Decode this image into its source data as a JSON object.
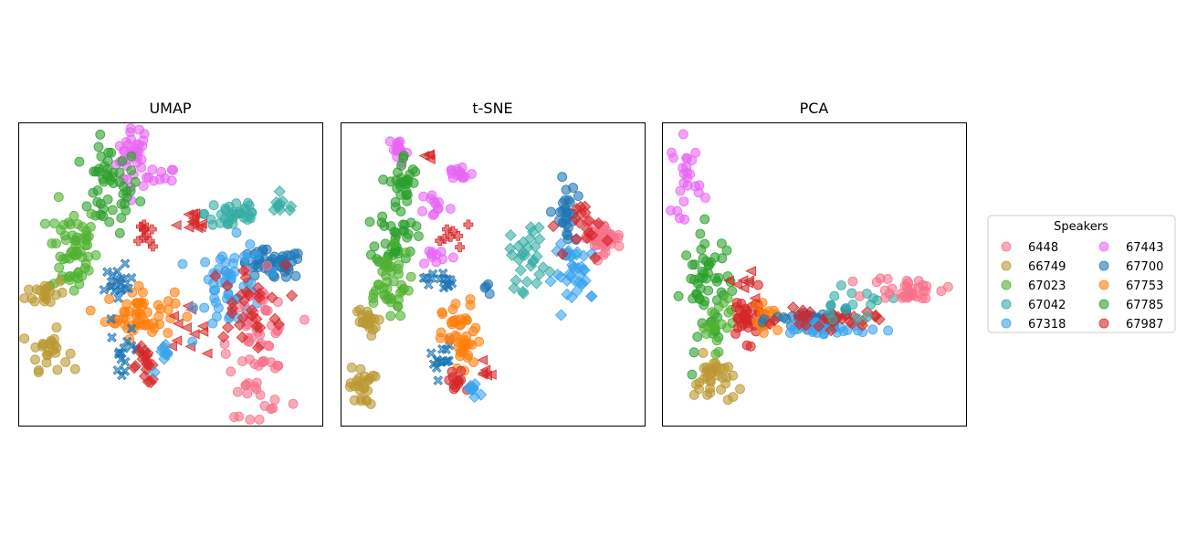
{
  "chart_data": [
    {
      "type": "scatter",
      "title": "UMAP",
      "xlabel": "",
      "ylabel": "",
      "xlim": [
        0,
        100
      ],
      "ylim": [
        0,
        100
      ],
      "axes_ticks": false,
      "clusters": [
        {
          "speaker": "67443",
          "marker": "o",
          "cx": 38,
          "cy": 89,
          "sx": 3.5,
          "sy": 7,
          "n": 35
        },
        {
          "speaker": "67443",
          "marker": "o",
          "cx": 47,
          "cy": 82,
          "sx": 3,
          "sy": 2,
          "n": 10
        },
        {
          "speaker": "67785",
          "marker": "o",
          "cx": 30,
          "cy": 78,
          "sx": 6,
          "sy": 9,
          "n": 50
        },
        {
          "speaker": "67023",
          "marker": "o",
          "cx": 18,
          "cy": 58,
          "sx": 5,
          "sy": 10,
          "n": 60
        },
        {
          "speaker": "66749",
          "marker": "o",
          "cx": 9,
          "cy": 44,
          "sx": 4,
          "sy": 3,
          "n": 20
        },
        {
          "speaker": "66749",
          "marker": "o",
          "cx": 10,
          "cy": 25,
          "sx": 4,
          "sy": 4,
          "n": 25
        },
        {
          "speaker": "67753",
          "marker": "o",
          "cx": 40,
          "cy": 37,
          "sx": 7,
          "sy": 5,
          "n": 55
        },
        {
          "speaker": "67700",
          "marker": "X",
          "cx": 33,
          "cy": 46,
          "sx": 3,
          "sy": 4,
          "n": 20
        },
        {
          "speaker": "67700",
          "marker": "X",
          "cx": 35,
          "cy": 25,
          "sx": 3,
          "sy": 4,
          "n": 15
        },
        {
          "speaker": "67987",
          "marker": "D",
          "cx": 42,
          "cy": 20,
          "sx": 3,
          "sy": 4,
          "n": 18
        },
        {
          "speaker": "67987",
          "marker": "<",
          "cx": 55,
          "cy": 32,
          "sx": 4,
          "sy": 4,
          "n": 12
        },
        {
          "speaker": "67318",
          "marker": "D",
          "cx": 48,
          "cy": 22,
          "sx": 2,
          "sy": 3,
          "n": 10
        },
        {
          "speaker": "67042",
          "marker": "o",
          "cx": 71,
          "cy": 70,
          "sx": 6,
          "sy": 4,
          "n": 35
        },
        {
          "speaker": "67042",
          "marker": "D",
          "cx": 87,
          "cy": 72,
          "sx": 3,
          "sy": 2,
          "n": 10
        },
        {
          "speaker": "67700",
          "marker": "o",
          "cx": 83,
          "cy": 53,
          "sx": 7,
          "sy": 3,
          "n": 50
        },
        {
          "speaker": "67318",
          "marker": "o",
          "cx": 70,
          "cy": 46,
          "sx": 7,
          "sy": 9,
          "n": 55
        },
        {
          "speaker": "6448",
          "marker": "o",
          "cx": 79,
          "cy": 26,
          "sx": 6,
          "sy": 14,
          "n": 70
        },
        {
          "speaker": "67987",
          "marker": "D",
          "cx": 75,
          "cy": 40,
          "sx": 8,
          "sy": 8,
          "n": 30
        },
        {
          "speaker": "67987",
          "marker": "<",
          "cx": 57,
          "cy": 66,
          "sx": 3,
          "sy": 3,
          "n": 12
        },
        {
          "speaker": "67987",
          "marker": "P",
          "cx": 42,
          "cy": 62,
          "sx": 1.5,
          "sy": 4,
          "n": 10
        }
      ]
    },
    {
      "type": "scatter",
      "title": "t-SNE",
      "xlabel": "",
      "ylabel": "",
      "xlim": [
        0,
        100
      ],
      "ylim": [
        0,
        100
      ],
      "axes_ticks": false,
      "clusters": [
        {
          "speaker": "67443",
          "marker": "o",
          "cx": 19,
          "cy": 91,
          "sx": 2,
          "sy": 3,
          "n": 15
        },
        {
          "speaker": "67443",
          "marker": "o",
          "cx": 39,
          "cy": 83,
          "sx": 3,
          "sy": 2,
          "n": 15
        },
        {
          "speaker": "67443",
          "marker": "o",
          "cx": 31,
          "cy": 73,
          "sx": 3,
          "sy": 3,
          "n": 12
        },
        {
          "speaker": "67443",
          "marker": "o",
          "cx": 32,
          "cy": 56,
          "sx": 4,
          "sy": 2,
          "n": 10
        },
        {
          "speaker": "67785",
          "marker": "o",
          "cx": 21,
          "cy": 80,
          "sx": 3,
          "sy": 6,
          "n": 30
        },
        {
          "speaker": "67785",
          "marker": "o",
          "cx": 18,
          "cy": 62,
          "sx": 4,
          "sy": 6,
          "n": 35
        },
        {
          "speaker": "67023",
          "marker": "o",
          "cx": 15,
          "cy": 47,
          "sx": 5,
          "sy": 7,
          "n": 45
        },
        {
          "speaker": "66749",
          "marker": "o",
          "cx": 8,
          "cy": 34,
          "sx": 2.5,
          "sy": 3,
          "n": 20
        },
        {
          "speaker": "66749",
          "marker": "o",
          "cx": 7,
          "cy": 13,
          "sx": 2.5,
          "sy": 4,
          "n": 25
        },
        {
          "speaker": "67700",
          "marker": "X",
          "cx": 32,
          "cy": 48,
          "sx": 3,
          "sy": 2,
          "n": 15
        },
        {
          "speaker": "67700",
          "marker": "X",
          "cx": 33,
          "cy": 22,
          "sx": 2.5,
          "sy": 4,
          "n": 15
        },
        {
          "speaker": "67753",
          "marker": "o",
          "cx": 40,
          "cy": 28,
          "sx": 4,
          "sy": 8,
          "n": 45
        },
        {
          "speaker": "67987",
          "marker": "o",
          "cx": 38,
          "cy": 14,
          "sx": 2,
          "sy": 3,
          "n": 12
        },
        {
          "speaker": "67318",
          "marker": "D",
          "cx": 44,
          "cy": 12,
          "sx": 2.5,
          "sy": 2,
          "n": 10
        },
        {
          "speaker": "67987",
          "marker": "<",
          "cx": 48,
          "cy": 19,
          "sx": 1.5,
          "sy": 3,
          "n": 6
        },
        {
          "speaker": "67987",
          "marker": "<",
          "cx": 28,
          "cy": 89,
          "sx": 1.5,
          "sy": 1,
          "n": 4
        },
        {
          "speaker": "67987",
          "marker": "P",
          "cx": 38,
          "cy": 63,
          "sx": 3,
          "sy": 2,
          "n": 8
        },
        {
          "speaker": "67700",
          "marker": "o",
          "cx": 47,
          "cy": 45,
          "sx": 1.5,
          "sy": 1.5,
          "n": 4
        },
        {
          "speaker": "67042",
          "marker": "D",
          "cx": 62,
          "cy": 56,
          "sx": 4,
          "sy": 7,
          "n": 30
        },
        {
          "speaker": "67700",
          "marker": "o",
          "cx": 74,
          "cy": 68,
          "sx": 2,
          "sy": 8,
          "n": 30
        },
        {
          "speaker": "6448",
          "marker": "o",
          "cx": 86,
          "cy": 62,
          "sx": 4,
          "sy": 3,
          "n": 40
        },
        {
          "speaker": "67318",
          "marker": "D",
          "cx": 78,
          "cy": 50,
          "sx": 5,
          "sy": 6,
          "n": 35
        },
        {
          "speaker": "67987",
          "marker": "D",
          "cx": 82,
          "cy": 65,
          "sx": 4,
          "sy": 6,
          "n": 18
        }
      ]
    },
    {
      "type": "scatter",
      "title": "PCA",
      "xlabel": "",
      "ylabel": "",
      "xlim": [
        0,
        100
      ],
      "ylim": [
        0,
        100
      ],
      "axes_ticks": false,
      "clusters": [
        {
          "speaker": "67443",
          "marker": "o",
          "cx": 8,
          "cy": 82,
          "sx": 3,
          "sy": 8,
          "n": 25
        },
        {
          "speaker": "67785",
          "marker": "o",
          "cx": 15,
          "cy": 45,
          "sx": 5,
          "sy": 12,
          "n": 55
        },
        {
          "speaker": "67023",
          "marker": "o",
          "cx": 18,
          "cy": 35,
          "sx": 4,
          "sy": 6,
          "n": 20
        },
        {
          "speaker": "66749",
          "marker": "o",
          "cx": 17,
          "cy": 15,
          "sx": 4,
          "sy": 5,
          "n": 35
        },
        {
          "speaker": "67987",
          "marker": "o",
          "cx": 28,
          "cy": 36,
          "sx": 4,
          "sy": 5,
          "n": 35
        },
        {
          "speaker": "67753",
          "marker": "o",
          "cx": 34,
          "cy": 34,
          "sx": 3,
          "sy": 3,
          "n": 15
        },
        {
          "speaker": "67987",
          "marker": "<",
          "cx": 28,
          "cy": 48,
          "sx": 3,
          "sy": 3,
          "n": 8
        },
        {
          "speaker": "67700",
          "marker": "o",
          "cx": 50,
          "cy": 35,
          "sx": 8,
          "sy": 2,
          "n": 45
        },
        {
          "speaker": "67318",
          "marker": "o",
          "cx": 53,
          "cy": 32,
          "sx": 9,
          "sy": 2,
          "n": 35
        },
        {
          "speaker": "67987",
          "marker": "D",
          "cx": 55,
          "cy": 35,
          "sx": 10,
          "sy": 2,
          "n": 30
        },
        {
          "speaker": "67042",
          "marker": "o",
          "cx": 62,
          "cy": 40,
          "sx": 8,
          "sy": 3,
          "n": 15
        },
        {
          "speaker": "6448",
          "marker": "o",
          "cx": 82,
          "cy": 45,
          "sx": 8,
          "sy": 2.5,
          "n": 35
        }
      ]
    }
  ],
  "legend": {
    "title": "Speakers",
    "placement": "right",
    "entries": [
      {
        "label": "6448",
        "color": "#f77189"
      },
      {
        "label": "66749",
        "color": "#bb9832"
      },
      {
        "label": "67023",
        "color": "#50b131"
      },
      {
        "label": "67042",
        "color": "#36ada4"
      },
      {
        "label": "67318",
        "color": "#3ba3ec"
      },
      {
        "label": "67443",
        "color": "#e866f4"
      },
      {
        "label": "67700",
        "color": "#1f77b4"
      },
      {
        "label": "67753",
        "color": "#ff7f0e"
      },
      {
        "label": "67785",
        "color": "#2ca02c"
      },
      {
        "label": "67987",
        "color": "#d62728"
      }
    ]
  }
}
